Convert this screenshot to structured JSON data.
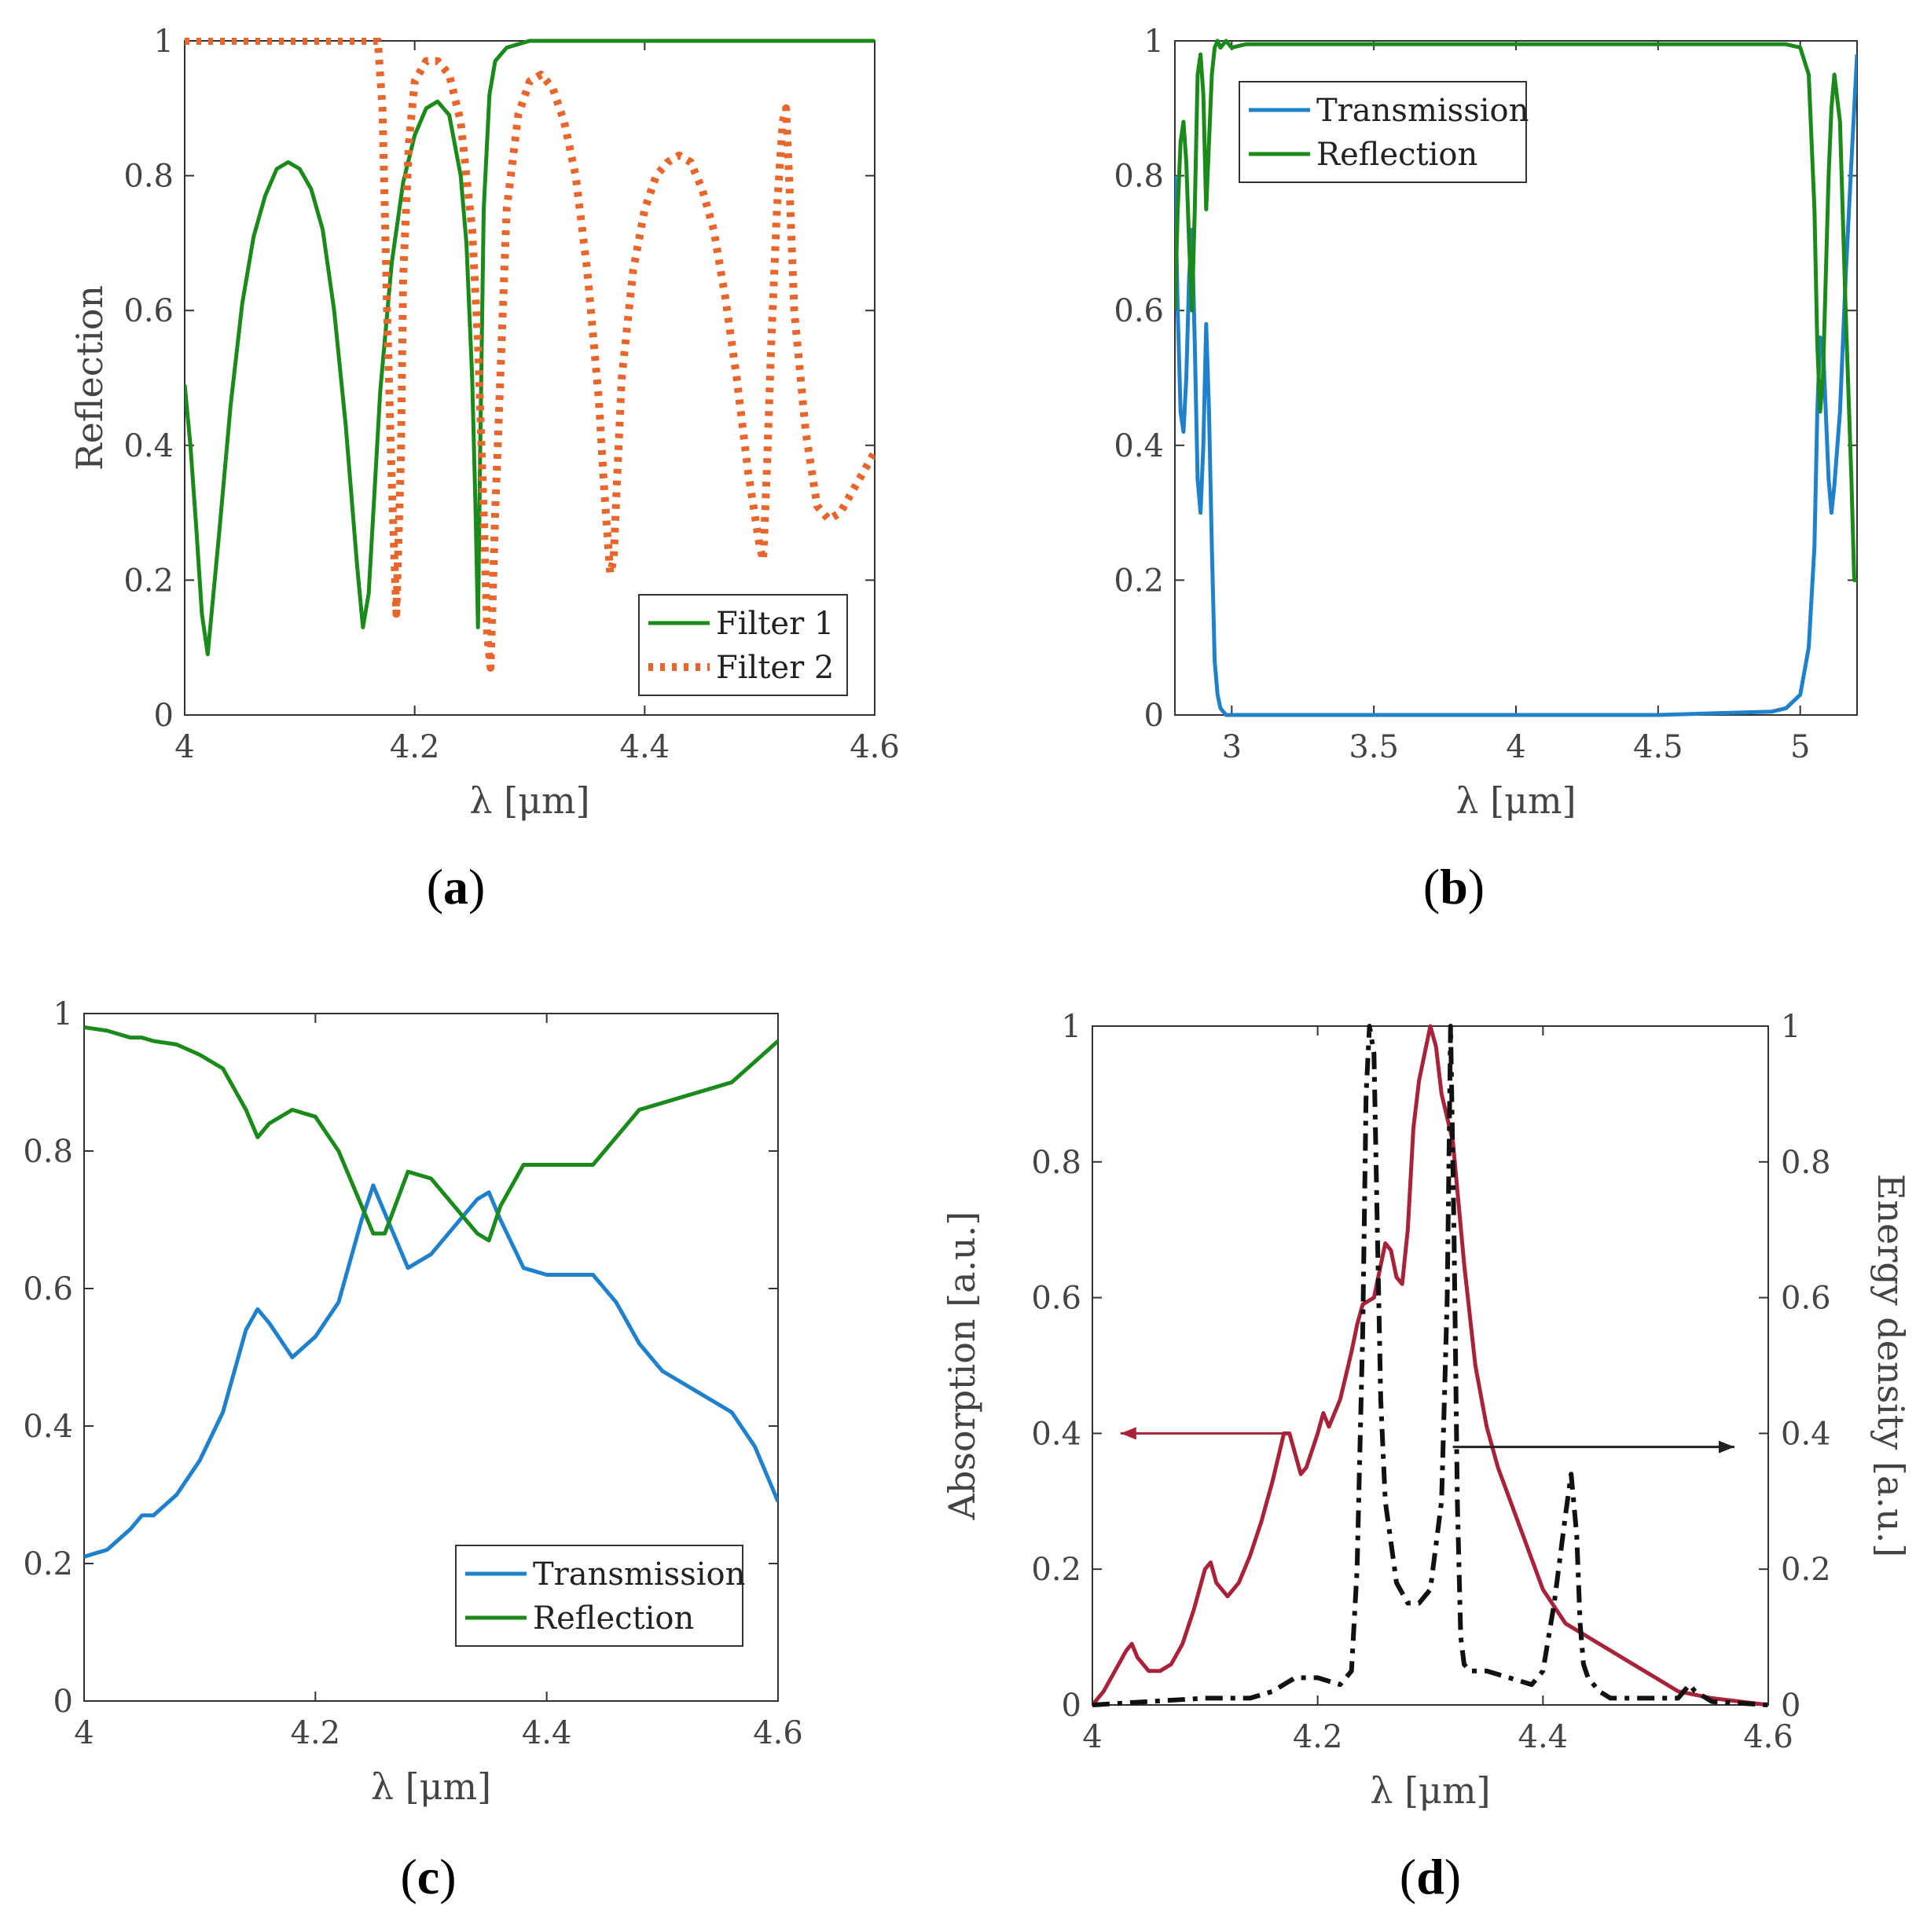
{
  "chart_data": [
    {
      "id": "a",
      "type": "line",
      "panel_label": "a",
      "xlabel": "λ [μm]",
      "ylabel": "Reflection",
      "xlim": [
        4.0,
        4.6
      ],
      "ylim": [
        0,
        1
      ],
      "xticks": [
        "4",
        "4.2",
        "4.4",
        "4.6"
      ],
      "yticks": [
        "0",
        "0.2",
        "0.4",
        "0.6",
        "0.8",
        "1"
      ],
      "legend": {
        "position": "bottom-right",
        "entries": [
          "Filter 1",
          "Filter 2"
        ]
      },
      "series": [
        {
          "name": "Filter 1",
          "color": "#1a8a1a",
          "style": "solid",
          "x": [
            4.0,
            4.005,
            4.01,
            4.015,
            4.02,
            4.03,
            4.04,
            4.05,
            4.06,
            4.07,
            4.08,
            4.09,
            4.1,
            4.11,
            4.12,
            4.13,
            4.14,
            4.15,
            4.155,
            4.16,
            4.165,
            4.17,
            4.18,
            4.19,
            4.2,
            4.21,
            4.22,
            4.23,
            4.24,
            4.245,
            4.25,
            4.253,
            4.255,
            4.257,
            4.26,
            4.265,
            4.27,
            4.28,
            4.3,
            4.35,
            4.4,
            4.5,
            4.6
          ],
          "y": [
            0.49,
            0.4,
            0.28,
            0.15,
            0.09,
            0.27,
            0.46,
            0.61,
            0.71,
            0.77,
            0.81,
            0.82,
            0.81,
            0.78,
            0.72,
            0.6,
            0.43,
            0.22,
            0.13,
            0.18,
            0.33,
            0.48,
            0.67,
            0.79,
            0.86,
            0.9,
            0.91,
            0.89,
            0.8,
            0.7,
            0.5,
            0.3,
            0.13,
            0.4,
            0.75,
            0.92,
            0.97,
            0.99,
            1.0,
            1.0,
            1.0,
            1.0,
            1.0
          ]
        },
        {
          "name": "Filter 2",
          "color": "#e8662c",
          "style": "dotted",
          "x": [
            4.0,
            4.05,
            4.1,
            4.15,
            4.168,
            4.172,
            4.176,
            4.18,
            4.184,
            4.188,
            4.19,
            4.195,
            4.2,
            4.21,
            4.22,
            4.23,
            4.24,
            4.25,
            4.255,
            4.26,
            4.263,
            4.266,
            4.27,
            4.28,
            4.29,
            4.3,
            4.31,
            4.32,
            4.33,
            4.34,
            4.35,
            4.36,
            4.365,
            4.37,
            4.373,
            4.376,
            4.38,
            4.39,
            4.4,
            4.41,
            4.42,
            4.43,
            4.44,
            4.45,
            4.46,
            4.47,
            4.48,
            4.49,
            4.5,
            4.503,
            4.506,
            4.51,
            4.515,
            4.52,
            4.523,
            4.526,
            4.53,
            4.54,
            4.55,
            4.56,
            4.57,
            4.58,
            4.59,
            4.6
          ],
          "y": [
            1.0,
            1.0,
            1.0,
            1.0,
            1.0,
            0.9,
            0.6,
            0.35,
            0.15,
            0.38,
            0.65,
            0.85,
            0.94,
            0.97,
            0.97,
            0.95,
            0.88,
            0.72,
            0.55,
            0.3,
            0.12,
            0.07,
            0.3,
            0.75,
            0.89,
            0.94,
            0.95,
            0.93,
            0.88,
            0.8,
            0.66,
            0.47,
            0.33,
            0.21,
            0.23,
            0.35,
            0.5,
            0.66,
            0.75,
            0.8,
            0.82,
            0.83,
            0.82,
            0.78,
            0.72,
            0.62,
            0.5,
            0.36,
            0.25,
            0.23,
            0.35,
            0.55,
            0.75,
            0.88,
            0.9,
            0.78,
            0.6,
            0.42,
            0.31,
            0.29,
            0.3,
            0.33,
            0.36,
            0.39
          ]
        }
      ]
    },
    {
      "id": "b",
      "type": "line",
      "panel_label": "b",
      "xlabel": "λ [μm]",
      "ylabel": "",
      "xlim": [
        2.8,
        5.2
      ],
      "ylim": [
        0,
        1
      ],
      "xticks": [
        "3",
        "3.5",
        "4",
        "4.5",
        "5"
      ],
      "xtick_values": [
        3.0,
        3.5,
        4.0,
        4.5,
        5.0
      ],
      "yticks": [
        "0",
        "0.2",
        "0.4",
        "0.6",
        "0.8",
        "1"
      ],
      "legend": {
        "position": "top-left",
        "entries": [
          "Transmission",
          "Reflection"
        ]
      },
      "series": [
        {
          "name": "Transmission",
          "color": "#1f80cc",
          "style": "solid",
          "x": [
            2.8,
            2.81,
            2.82,
            2.83,
            2.84,
            2.85,
            2.86,
            2.87,
            2.88,
            2.89,
            2.9,
            2.91,
            2.92,
            2.93,
            2.94,
            2.95,
            2.96,
            2.97,
            2.98,
            3.0,
            3.05,
            3.5,
            4.0,
            4.5,
            4.9,
            4.95,
            5.0,
            5.03,
            5.05,
            5.06,
            5.07,
            5.08,
            5.09,
            5.1,
            5.11,
            5.12,
            5.14,
            5.16,
            5.18,
            5.19,
            5.2
          ],
          "y": [
            0.8,
            0.6,
            0.45,
            0.42,
            0.5,
            0.65,
            0.72,
            0.55,
            0.35,
            0.3,
            0.4,
            0.58,
            0.45,
            0.25,
            0.08,
            0.03,
            0.01,
            0.005,
            0.0,
            0.0,
            0.0,
            0.0,
            0.0,
            0.0,
            0.005,
            0.01,
            0.03,
            0.1,
            0.25,
            0.45,
            0.56,
            0.55,
            0.45,
            0.35,
            0.3,
            0.34,
            0.45,
            0.65,
            0.82,
            0.9,
            0.98
          ]
        },
        {
          "name": "Reflection",
          "color": "#1a8a1a",
          "style": "solid",
          "x": [
            2.8,
            2.81,
            2.82,
            2.83,
            2.84,
            2.85,
            2.86,
            2.87,
            2.88,
            2.89,
            2.9,
            2.91,
            2.92,
            2.93,
            2.94,
            2.95,
            2.96,
            2.97,
            2.98,
            3.0,
            3.05,
            3.5,
            4.0,
            4.5,
            4.9,
            4.95,
            5.0,
            5.03,
            5.05,
            5.06,
            5.07,
            5.08,
            5.09,
            5.1,
            5.11,
            5.12,
            5.14,
            5.16,
            5.18,
            5.19,
            5.2
          ],
          "y": [
            0.6,
            0.75,
            0.85,
            0.88,
            0.82,
            0.7,
            0.6,
            0.75,
            0.95,
            0.98,
            0.92,
            0.75,
            0.85,
            0.95,
            0.99,
            1.0,
            0.99,
            0.995,
            1.0,
            0.99,
            0.995,
            0.995,
            0.995,
            0.995,
            0.995,
            0.995,
            0.99,
            0.95,
            0.75,
            0.55,
            0.45,
            0.5,
            0.65,
            0.8,
            0.9,
            0.95,
            0.88,
            0.6,
            0.35,
            0.2,
            0.2
          ]
        }
      ]
    },
    {
      "id": "c",
      "type": "line",
      "panel_label": "c",
      "xlabel": "λ [μm]",
      "ylabel": "",
      "xlim": [
        4.0,
        4.6
      ],
      "ylim": [
        0,
        1
      ],
      "xticks": [
        "4",
        "4.2",
        "4.4",
        "4.6"
      ],
      "yticks": [
        "0",
        "0.2",
        "0.4",
        "0.6",
        "0.8",
        "1"
      ],
      "legend": {
        "position": "bottom-right",
        "entries": [
          "Transmission",
          "Reflection"
        ]
      },
      "series": [
        {
          "name": "Transmission",
          "color": "#1f80cc",
          "style": "solid",
          "x": [
            4.0,
            4.02,
            4.04,
            4.05,
            4.06,
            4.08,
            4.1,
            4.12,
            4.14,
            4.15,
            4.16,
            4.18,
            4.2,
            4.22,
            4.24,
            4.25,
            4.26,
            4.28,
            4.3,
            4.32,
            4.34,
            4.35,
            4.36,
            4.38,
            4.4,
            4.42,
            4.44,
            4.46,
            4.48,
            4.5,
            4.52,
            4.54,
            4.56,
            4.58,
            4.6
          ],
          "y": [
            0.21,
            0.22,
            0.25,
            0.27,
            0.27,
            0.3,
            0.35,
            0.42,
            0.54,
            0.57,
            0.55,
            0.5,
            0.53,
            0.58,
            0.7,
            0.75,
            0.71,
            0.63,
            0.65,
            0.69,
            0.73,
            0.74,
            0.7,
            0.63,
            0.62,
            0.62,
            0.62,
            0.58,
            0.52,
            0.48,
            0.46,
            0.44,
            0.42,
            0.37,
            0.29
          ]
        },
        {
          "name": "Reflection",
          "color": "#1a8a1a",
          "style": "solid",
          "x": [
            4.0,
            4.02,
            4.04,
            4.05,
            4.06,
            4.08,
            4.1,
            4.12,
            4.14,
            4.15,
            4.16,
            4.18,
            4.2,
            4.22,
            4.24,
            4.25,
            4.26,
            4.28,
            4.3,
            4.32,
            4.34,
            4.35,
            4.36,
            4.38,
            4.4,
            4.42,
            4.44,
            4.46,
            4.48,
            4.5,
            4.52,
            4.54,
            4.56,
            4.58,
            4.6
          ],
          "y": [
            0.98,
            0.975,
            0.965,
            0.965,
            0.96,
            0.955,
            0.94,
            0.92,
            0.86,
            0.82,
            0.84,
            0.86,
            0.85,
            0.8,
            0.72,
            0.68,
            0.68,
            0.77,
            0.76,
            0.72,
            0.68,
            0.67,
            0.72,
            0.78,
            0.78,
            0.78,
            0.78,
            0.82,
            0.86,
            0.87,
            0.88,
            0.89,
            0.9,
            0.93,
            0.96
          ]
        }
      ]
    },
    {
      "id": "d",
      "type": "line",
      "panel_label": "d",
      "xlabel": "λ [μm]",
      "ylabel": "Absorption [a.u.]",
      "ylabel_right": "Energy density [a.u.]",
      "xlim": [
        4.0,
        4.6
      ],
      "ylim": [
        0,
        1
      ],
      "xticks": [
        "4",
        "4.2",
        "4.4",
        "4.6"
      ],
      "yticks": [
        "0",
        "0.2",
        "0.4",
        "0.6",
        "0.8",
        "1"
      ],
      "yticks_right": [
        "0",
        "0.2",
        "0.4",
        "0.6",
        "0.8",
        "1"
      ],
      "annotations": [
        {
          "type": "arrow",
          "direction": "left",
          "from_x": 4.17,
          "to_x": 4.025,
          "y": 0.4,
          "color": "#a8233a"
        },
        {
          "type": "arrow",
          "direction": "right",
          "from_x": 4.32,
          "to_x": 4.57,
          "y": 0.38,
          "color": "#222222"
        }
      ],
      "series": [
        {
          "name": "Absorption",
          "axis": "left",
          "color": "#a8233a",
          "style": "solid",
          "x": [
            4.0,
            4.01,
            4.02,
            4.03,
            4.035,
            4.04,
            4.05,
            4.06,
            4.07,
            4.08,
            4.09,
            4.1,
            4.105,
            4.11,
            4.12,
            4.13,
            4.14,
            4.15,
            4.16,
            4.17,
            4.175,
            4.18,
            4.185,
            4.19,
            4.2,
            4.205,
            4.21,
            4.22,
            4.23,
            4.235,
            4.24,
            4.25,
            4.26,
            4.265,
            4.27,
            4.275,
            4.28,
            4.285,
            4.29,
            4.3,
            4.305,
            4.31,
            4.32,
            4.33,
            4.34,
            4.35,
            4.36,
            4.38,
            4.4,
            4.42,
            4.44,
            4.46,
            4.48,
            4.5,
            4.52,
            4.55,
            4.6
          ],
          "y": [
            0.0,
            0.02,
            0.05,
            0.08,
            0.09,
            0.07,
            0.05,
            0.05,
            0.06,
            0.09,
            0.14,
            0.2,
            0.21,
            0.18,
            0.16,
            0.18,
            0.22,
            0.27,
            0.33,
            0.4,
            0.4,
            0.37,
            0.34,
            0.35,
            0.4,
            0.43,
            0.41,
            0.45,
            0.52,
            0.56,
            0.59,
            0.6,
            0.68,
            0.67,
            0.63,
            0.62,
            0.7,
            0.85,
            0.92,
            1.0,
            0.97,
            0.9,
            0.83,
            0.65,
            0.5,
            0.41,
            0.35,
            0.26,
            0.17,
            0.12,
            0.1,
            0.08,
            0.06,
            0.04,
            0.02,
            0.01,
            0.0
          ]
        },
        {
          "name": "Energy density",
          "axis": "right",
          "color": "#111111",
          "style": "dashdot",
          "x": [
            4.0,
            4.05,
            4.1,
            4.14,
            4.16,
            4.18,
            4.2,
            4.22,
            4.23,
            4.235,
            4.24,
            4.243,
            4.246,
            4.25,
            4.253,
            4.256,
            4.26,
            4.27,
            4.28,
            4.29,
            4.3,
            4.31,
            4.315,
            4.318,
            4.321,
            4.324,
            4.327,
            4.33,
            4.335,
            4.34,
            4.35,
            4.37,
            4.39,
            4.4,
            4.41,
            4.42,
            4.425,
            4.43,
            4.433,
            4.436,
            4.44,
            4.45,
            4.46,
            4.5,
            4.52,
            4.53,
            4.535,
            4.55,
            4.6
          ],
          "y": [
            0.0,
            0.005,
            0.01,
            0.01,
            0.02,
            0.04,
            0.04,
            0.03,
            0.05,
            0.2,
            0.55,
            0.9,
            1.0,
            0.96,
            0.7,
            0.45,
            0.3,
            0.18,
            0.15,
            0.15,
            0.17,
            0.3,
            0.6,
            1.0,
            0.7,
            0.3,
            0.1,
            0.06,
            0.05,
            0.05,
            0.05,
            0.04,
            0.03,
            0.05,
            0.15,
            0.28,
            0.34,
            0.25,
            0.12,
            0.06,
            0.04,
            0.02,
            0.01,
            0.01,
            0.01,
            0.03,
            0.02,
            0.005,
            0.0
          ]
        }
      ]
    }
  ]
}
